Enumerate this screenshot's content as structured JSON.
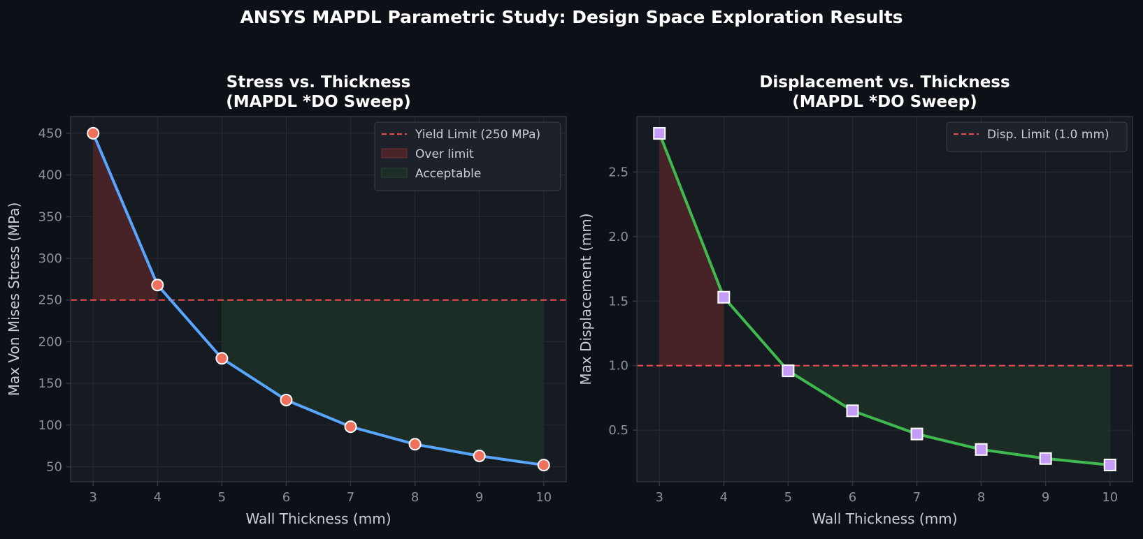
{
  "suptitle": "ANSYS MAPDL Parametric Study: Design Space Exploration Results",
  "colors": {
    "figure_bg": "#0d1017",
    "axes_bg": "#161a21",
    "grid": "#262b34",
    "spine": "#30363f",
    "limit_line": "#e5484d",
    "over_fill": "#4a2328",
    "ok_fill": "#1c2e26",
    "stress_line": "#58a6ff",
    "stress_marker": "#f0705e",
    "disp_line": "#3fb950",
    "disp_marker": "#c49cf5"
  },
  "chart_data": [
    {
      "type": "line",
      "title_lines": [
        "Stress vs. Thickness",
        "(MAPDL *DO Sweep)"
      ],
      "xlabel": "Wall Thickness (mm)",
      "ylabel": "Max Von Mises Stress (MPa)",
      "x": [
        3,
        4,
        5,
        6,
        7,
        8,
        9,
        10
      ],
      "series": [
        {
          "values": [
            450,
            268,
            180,
            130,
            98,
            77,
            63,
            52
          ],
          "marker": "circle"
        }
      ],
      "limit": {
        "value": 250,
        "label": "Yield Limit (250 MPa)"
      },
      "xlim": [
        2.65,
        10.35
      ],
      "ylim": [
        32,
        470
      ],
      "xticks": [
        3,
        4,
        5,
        6,
        7,
        8,
        9,
        10
      ],
      "yticks": [
        50,
        100,
        150,
        200,
        250,
        300,
        350,
        400,
        450
      ],
      "over_region": {
        "x": [
          3,
          4
        ],
        "label": "Over limit"
      },
      "ok_region": {
        "x": [
          5,
          10
        ],
        "label": "Acceptable"
      },
      "legend": {
        "position": "top-right",
        "entries": [
          "Yield Limit (250 MPa)",
          "Over limit",
          "Acceptable"
        ]
      },
      "grid": true
    },
    {
      "type": "line",
      "title_lines": [
        "Displacement vs. Thickness",
        "(MAPDL *DO Sweep)"
      ],
      "xlabel": "Wall Thickness (mm)",
      "ylabel": "Max Displacement (mm)",
      "x": [
        3,
        4,
        5,
        6,
        7,
        8,
        9,
        10
      ],
      "series": [
        {
          "values": [
            2.8,
            1.53,
            0.96,
            0.65,
            0.47,
            0.35,
            0.28,
            0.23
          ],
          "marker": "square"
        }
      ],
      "limit": {
        "value": 1.0,
        "label": "Disp. Limit (1.0 mm)"
      },
      "xlim": [
        2.65,
        10.35
      ],
      "ylim": [
        0.1,
        2.93
      ],
      "xticks": [
        3,
        4,
        5,
        6,
        7,
        8,
        9,
        10
      ],
      "yticks": [
        "0.5",
        "1.0",
        "1.5",
        "2.0",
        "2.5"
      ],
      "over_region": {
        "x": [
          3,
          4
        ]
      },
      "ok_region": {
        "x": [
          5,
          10
        ]
      },
      "legend": {
        "position": "top-right",
        "entries": [
          "Disp. Limit (1.0 mm)"
        ]
      },
      "grid": true
    }
  ]
}
